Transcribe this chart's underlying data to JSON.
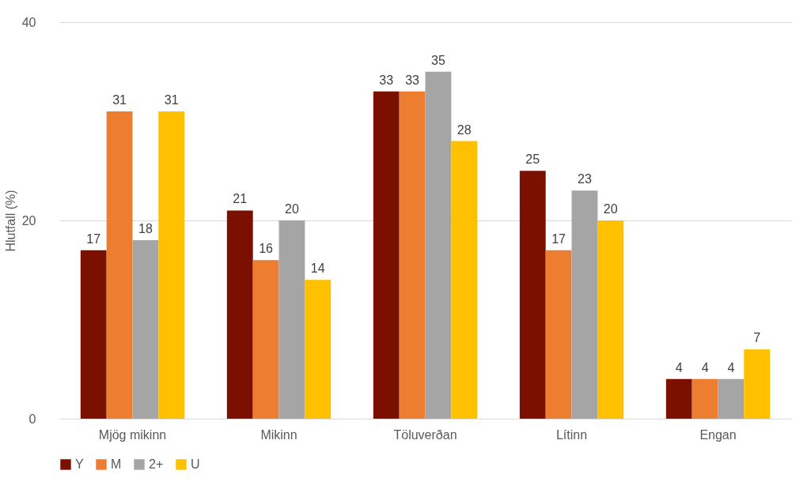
{
  "chart_data": {
    "type": "bar",
    "ylabel": "Hlutfall (%)",
    "categories": [
      "Mjög mikinn",
      "Mikinn",
      "Töluverðan",
      "Lítinn",
      "Engan"
    ],
    "series": [
      {
        "name": "Y",
        "color": "#7b1000",
        "values": [
          17,
          21,
          33,
          25,
          4
        ]
      },
      {
        "name": "M",
        "color": "#ed7d31",
        "values": [
          31,
          16,
          33,
          17,
          4
        ]
      },
      {
        "name": "2+",
        "color": "#a5a5a5",
        "values": [
          18,
          20,
          35,
          23,
          4
        ]
      },
      {
        "name": "U",
        "color": "#ffc000",
        "values": [
          31,
          14,
          28,
          20,
          7
        ]
      }
    ],
    "ylim": [
      0,
      40
    ],
    "yticks": [
      0,
      20,
      40
    ],
    "grid": "y",
    "legend": "bottom",
    "data_labels": true
  }
}
